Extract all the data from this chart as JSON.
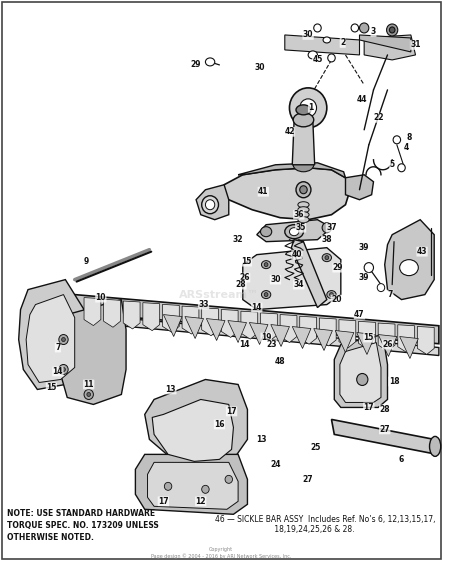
{
  "background_color": "#ffffff",
  "note_text": "NOTE: USE STANDARD HARDWARE\nTORQUE SPEC. NO. 173209 UNLESS\nOTHERWISE NOTED.",
  "assy_line1": "46 — SICKLE BAR ASSY  Includes Ref. No’s 6, 12,13,15,17,",
  "assy_line2": "18,19,24,25,26 & 28.",
  "copyright_text": "Copyright\nPage design © 2004 - 2016 by ARI Network Services, Inc.",
  "watermark": "ARSstream™",
  "fig_width": 4.74,
  "fig_height": 5.62,
  "dpi": 100,
  "dk": "#111111",
  "md": "#666666",
  "lt": "#aaaaaa",
  "bg": "#e8e8e8"
}
